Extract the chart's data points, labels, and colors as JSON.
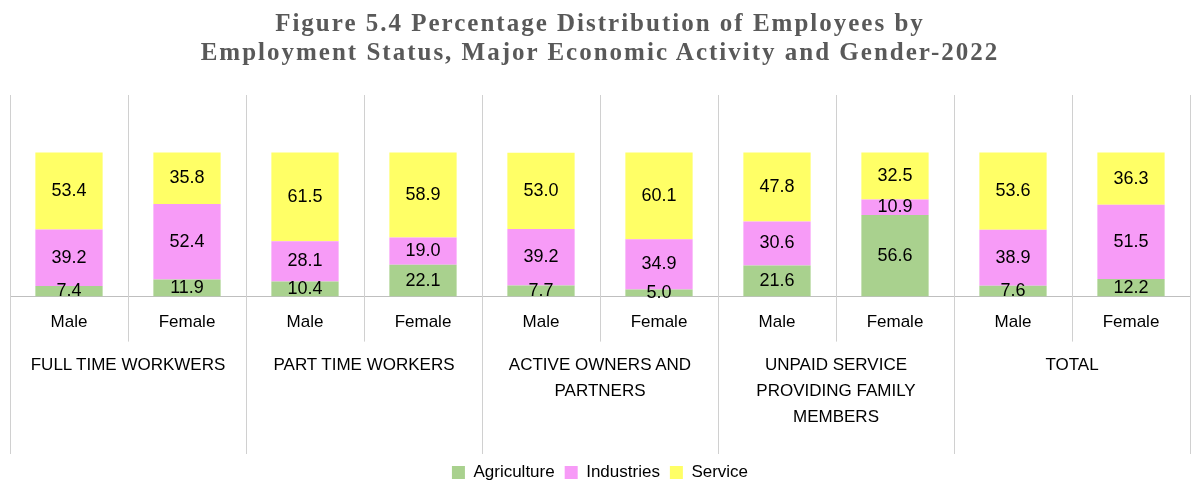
{
  "chart_data": {
    "type": "bar",
    "title": "Figure 5.4 Percentage Distribution of Employees by Employment Status, Major Economic Activity and Gender-2022",
    "categories": [
      "Male",
      "Female",
      "Male",
      "Female",
      "Male",
      "Female",
      "Male",
      "Female",
      "Male",
      "Female"
    ],
    "stacked": true,
    "legend": "bottom",
    "series": [
      {
        "name": "Agriculture",
        "color": "#a9d18e",
        "values": [
          7.4,
          11.9,
          10.4,
          22.1,
          7.7,
          5.0,
          21.6,
          56.6,
          7.6,
          12.2
        ],
        "value_labels": [
          "7.4",
          "11.9",
          "10.4",
          "22.1",
          "7.7",
          "5.0",
          "21.6",
          "56.6",
          "7.6",
          "12.2"
        ]
      },
      {
        "name": "Industries",
        "color": "#f79bf7",
        "values": [
          39.2,
          52.4,
          28.1,
          19.0,
          39.2,
          34.9,
          30.6,
          10.9,
          38.9,
          51.5
        ],
        "value_labels": [
          "39.2",
          "52.4",
          "28.1",
          "19.0",
          "39.2",
          "34.9",
          "30.6",
          "10.9",
          "38.9",
          "51.5"
        ]
      },
      {
        "name": "Service",
        "color": "#ffff66",
        "values": [
          53.4,
          35.8,
          61.5,
          58.9,
          53.0,
          60.1,
          47.8,
          32.5,
          53.6,
          36.3
        ],
        "value_labels": [
          "53.4",
          "35.8",
          "61.5",
          "58.9",
          "53.0",
          "60.1",
          "47.8",
          "32.5",
          "53.6",
          "36.3"
        ]
      }
    ],
    "annotations": [
      "FULL TIME WORKWERS",
      "PART TIME WORKERS",
      "ACTIVE OWNERS AND PARTNERS",
      "UNPAID SERVICE PROVIDING FAMILY MEMBERS",
      "TOTAL"
    ]
  }
}
